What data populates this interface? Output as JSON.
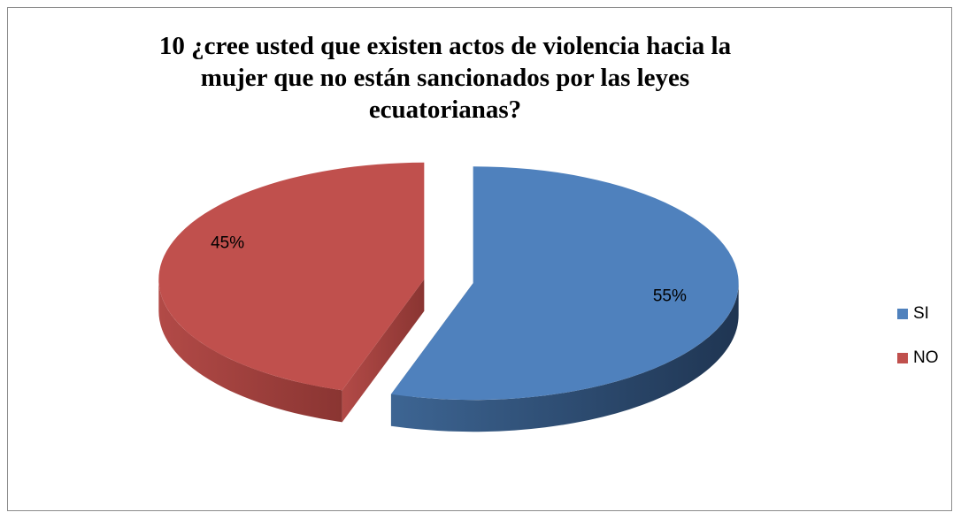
{
  "chart_data": {
    "type": "pie",
    "title": "10 ¿cree usted que existen actos de violencia hacia la mujer que no están sancionados por las leyes ecuatorianas?",
    "categories": [
      "SI",
      "NO"
    ],
    "values": [
      55,
      45
    ],
    "value_labels": [
      "55%",
      "45%"
    ],
    "colors": [
      "#4f81bd",
      "#c0504d"
    ],
    "legend": "right"
  }
}
